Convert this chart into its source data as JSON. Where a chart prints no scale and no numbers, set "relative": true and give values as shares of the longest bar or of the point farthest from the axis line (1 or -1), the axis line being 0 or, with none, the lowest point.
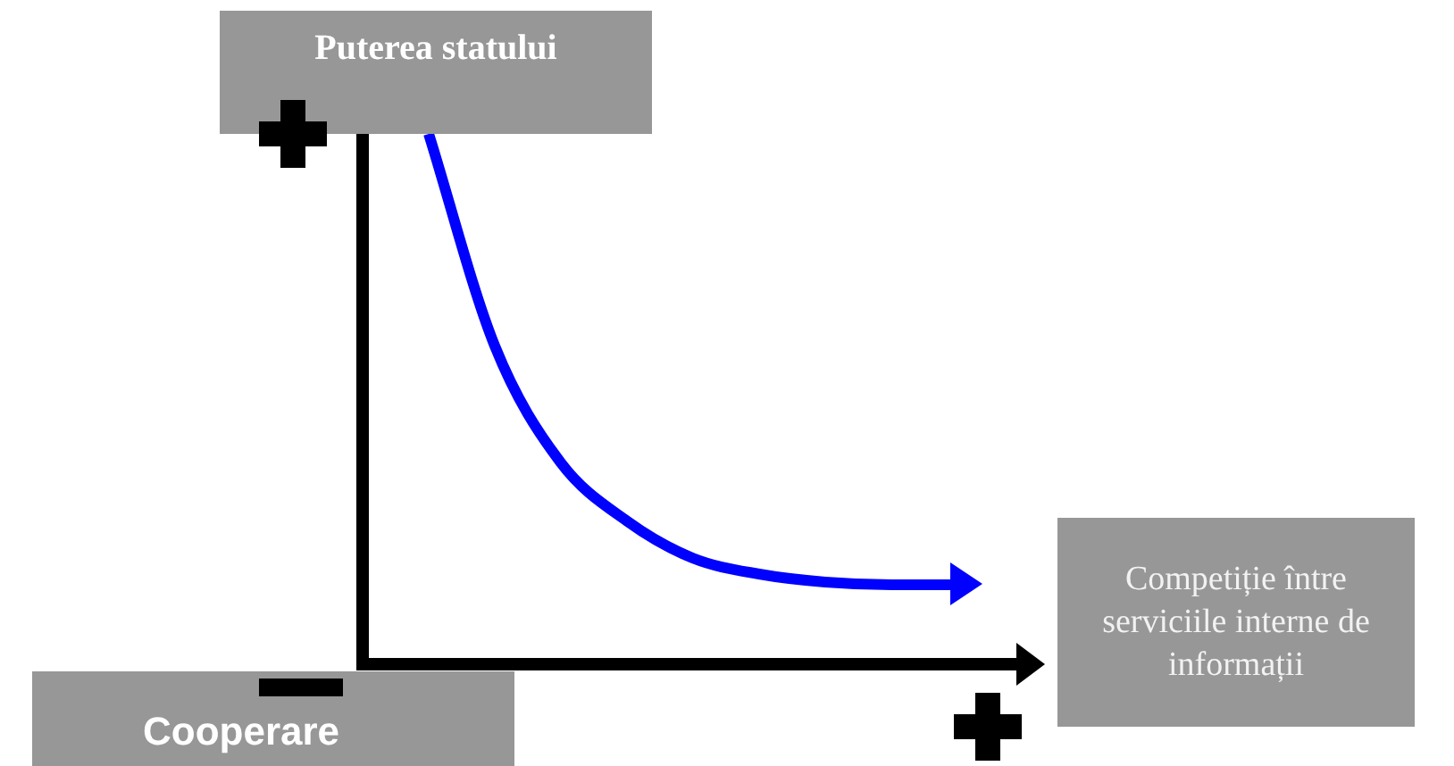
{
  "chart_data": {
    "type": "line",
    "relative": true,
    "ylabel": "Puterea statului",
    "xlabel": "Competiție între serviciile interne de informații",
    "annotations": [
      "Cooperare"
    ],
    "categories": [
      null,
      null,
      null,
      null,
      null,
      null,
      null,
      null,
      null,
      null,
      null
    ],
    "series": [
      {
        "color": "#0000ff",
        "values": [
          null,
          1,
          0.6,
          0.38,
          0.27,
          0.2,
          0.17,
          0.155,
          0.15,
          0.15,
          null
        ]
      }
    ],
    "grid": false,
    "legend": false
  }
}
